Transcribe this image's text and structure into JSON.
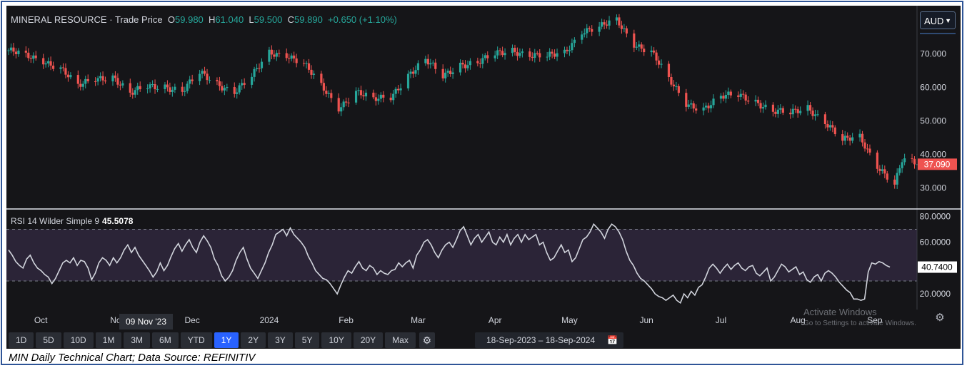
{
  "header": {
    "name": "MINERAL RESOURCE",
    "sep": " · ",
    "type": "Trade Price",
    "o_label": "O",
    "o": "59.980",
    "h_label": "H",
    "h": "61.040",
    "l_label": "L",
    "l": "59.500",
    "c_label": "C",
    "c": "59.890",
    "change": "+0.650 (+1.10%)"
  },
  "currency": "AUD",
  "rsi_header": {
    "label": "RSI 14 Wilder Simple 9",
    "value": "45.5078"
  },
  "last_price_label": "37.090",
  "rsi_last_label": "40.7400",
  "tooltip_date": "09 Nov '23",
  "range_buttons": [
    "1D",
    "5D",
    "10D",
    "1M",
    "3M",
    "6M",
    "YTD",
    "1Y",
    "2Y",
    "3Y",
    "5Y",
    "10Y",
    "20Y",
    "Max"
  ],
  "active_range": "1Y",
  "date_range": {
    "from": "18-Sep-2023",
    "dash": " – ",
    "to": "18-Sep-2024"
  },
  "watermark": {
    "title": "Activate Windows",
    "subtitle": "Go to Settings to activate Windows."
  },
  "caption": "MIN Daily Technical Chart; Data Source: REFINITIV",
  "colors": {
    "up": "#26a69a",
    "down": "#ef5350",
    "price_label_bg": "#ef5350",
    "rsi_line": "#d1d4dc",
    "active": "#2962ff"
  },
  "chart_data": [
    {
      "type": "candlestick",
      "title": "MINERAL RESOURCE · Trade Price",
      "currency": "AUD",
      "x_ticks": [
        "Oct",
        "Nov",
        "Dec",
        "2024",
        "Feb",
        "Mar",
        "Apr",
        "May",
        "Jun",
        "Jul",
        "Aug",
        "Sep"
      ],
      "y_ticks": [
        "30.000",
        "40.000",
        "50.000",
        "60.000",
        "70.000"
      ],
      "ylim": [
        24,
        83
      ],
      "x_range": [
        "18-Sep-2023",
        "18-Sep-2024"
      ],
      "last_value": 37.09,
      "close_series": [
        {
          "date": "2023-09-18",
          "close": 71.0
        },
        {
          "date": "2023-09-25",
          "close": 69.0
        },
        {
          "date": "2023-10-02",
          "close": 68.0
        },
        {
          "date": "2023-10-09",
          "close": 66.0
        },
        {
          "date": "2023-10-16",
          "close": 60.0
        },
        {
          "date": "2023-10-23",
          "close": 62.5
        },
        {
          "date": "2023-10-30",
          "close": 63.5
        },
        {
          "date": "2023-11-06",
          "close": 58.0
        },
        {
          "date": "2023-11-13",
          "close": 60.0
        },
        {
          "date": "2023-11-20",
          "close": 60.5
        },
        {
          "date": "2023-11-27",
          "close": 59.0
        },
        {
          "date": "2023-12-04",
          "close": 64.0
        },
        {
          "date": "2023-12-11",
          "close": 61.0
        },
        {
          "date": "2023-12-18",
          "close": 59.0
        },
        {
          "date": "2023-12-25",
          "close": 63.0
        },
        {
          "date": "2024-01-01",
          "close": 70.0
        },
        {
          "date": "2024-01-08",
          "close": 70.0
        },
        {
          "date": "2024-01-15",
          "close": 67.0
        },
        {
          "date": "2024-01-22",
          "close": 60.0
        },
        {
          "date": "2024-01-29",
          "close": 54.0
        },
        {
          "date": "2024-02-05",
          "close": 59.0
        },
        {
          "date": "2024-02-12",
          "close": 56.0
        },
        {
          "date": "2024-02-19",
          "close": 57.0
        },
        {
          "date": "2024-02-26",
          "close": 64.0
        },
        {
          "date": "2024-03-04",
          "close": 68.0
        },
        {
          "date": "2024-03-11",
          "close": 63.0
        },
        {
          "date": "2024-03-18",
          "close": 67.0
        },
        {
          "date": "2024-03-25",
          "close": 67.5
        },
        {
          "date": "2024-04-01",
          "close": 69.5
        },
        {
          "date": "2024-04-08",
          "close": 71.0
        },
        {
          "date": "2024-04-15",
          "close": 70.0
        },
        {
          "date": "2024-04-22",
          "close": 69.0
        },
        {
          "date": "2024-04-29",
          "close": 70.0
        },
        {
          "date": "2024-05-06",
          "close": 77.0
        },
        {
          "date": "2024-05-13",
          "close": 78.0
        },
        {
          "date": "2024-05-20",
          "close": 79.5
        },
        {
          "date": "2024-05-27",
          "close": 73.0
        },
        {
          "date": "2024-06-03",
          "close": 71.0
        },
        {
          "date": "2024-06-10",
          "close": 62.0
        },
        {
          "date": "2024-06-17",
          "close": 55.0
        },
        {
          "date": "2024-06-24",
          "close": 54.0
        },
        {
          "date": "2024-07-01",
          "close": 57.0
        },
        {
          "date": "2024-07-08",
          "close": 57.5
        },
        {
          "date": "2024-07-15",
          "close": 56.0
        },
        {
          "date": "2024-07-22",
          "close": 53.0
        },
        {
          "date": "2024-07-29",
          "close": 52.0
        },
        {
          "date": "2024-08-05",
          "close": 54.0
        },
        {
          "date": "2024-08-12",
          "close": 50.0
        },
        {
          "date": "2024-08-19",
          "close": 44.0
        },
        {
          "date": "2024-08-26",
          "close": 45.0
        },
        {
          "date": "2024-09-02",
          "close": 37.0
        },
        {
          "date": "2024-09-09",
          "close": 31.0
        },
        {
          "date": "2024-09-12",
          "close": 38.0
        },
        {
          "date": "2024-09-18",
          "close": 37.09
        }
      ]
    },
    {
      "type": "line",
      "title": "RSI 14 Wilder Simple 9",
      "y_ticks": [
        "20.0000",
        "40.0000",
        "60.0000",
        "80.0000"
      ],
      "ylim": [
        9,
        83
      ],
      "band": [
        30,
        70
      ],
      "last_value": 40.74,
      "series": [
        {
          "name": "RSI 14",
          "values": [
            54,
            50,
            45,
            42,
            40,
            47,
            50,
            44,
            40,
            38,
            35,
            33,
            28,
            32,
            38,
            44,
            46,
            44,
            48,
            42,
            46,
            45,
            40,
            31,
            36,
            44,
            48,
            46,
            42,
            48,
            44,
            48,
            54,
            58,
            52,
            56,
            50,
            46,
            42,
            38,
            33,
            37,
            44,
            38,
            42,
            49,
            55,
            59,
            53,
            58,
            62,
            56,
            52,
            60,
            65,
            61,
            56,
            47,
            42,
            34,
            30,
            33,
            38,
            46,
            52,
            56,
            47,
            40,
            36,
            32,
            38,
            44,
            52,
            58,
            66,
            68,
            70,
            65,
            71,
            66,
            63,
            60,
            56,
            49,
            44,
            38,
            35,
            32,
            31,
            28,
            24,
            20,
            27,
            33,
            38,
            36,
            41,
            45,
            40,
            38,
            42,
            40,
            35,
            38,
            36,
            35,
            38,
            39,
            44,
            41,
            44,
            46,
            40,
            50,
            54,
            60,
            62,
            58,
            52,
            48,
            54,
            58,
            60,
            56,
            62,
            69,
            72,
            65,
            58,
            63,
            66,
            60,
            64,
            68,
            60,
            58,
            64,
            60,
            66,
            58,
            63,
            66,
            60,
            66,
            62,
            64,
            66,
            58,
            60,
            52,
            46,
            48,
            53,
            58,
            52,
            54,
            45,
            48,
            55,
            62,
            64,
            68,
            74,
            71,
            68,
            63,
            70,
            74,
            72,
            68,
            62,
            53,
            46,
            42,
            36,
            32,
            30,
            27,
            24,
            20,
            18,
            17,
            15,
            17,
            19,
            15,
            13,
            20,
            17,
            22,
            19,
            25,
            27,
            33,
            40,
            43,
            40,
            36,
            40,
            43,
            39,
            42,
            44,
            40,
            38,
            41,
            42,
            36,
            34,
            37,
            40,
            30,
            33,
            38,
            43,
            41,
            37,
            39,
            41,
            35,
            37,
            31,
            29,
            33,
            35,
            30,
            36,
            38,
            36,
            33,
            29,
            26,
            23,
            21,
            16,
            16,
            15,
            16,
            37,
            44,
            43,
            45,
            44,
            42,
            40.74
          ]
        }
      ]
    }
  ]
}
